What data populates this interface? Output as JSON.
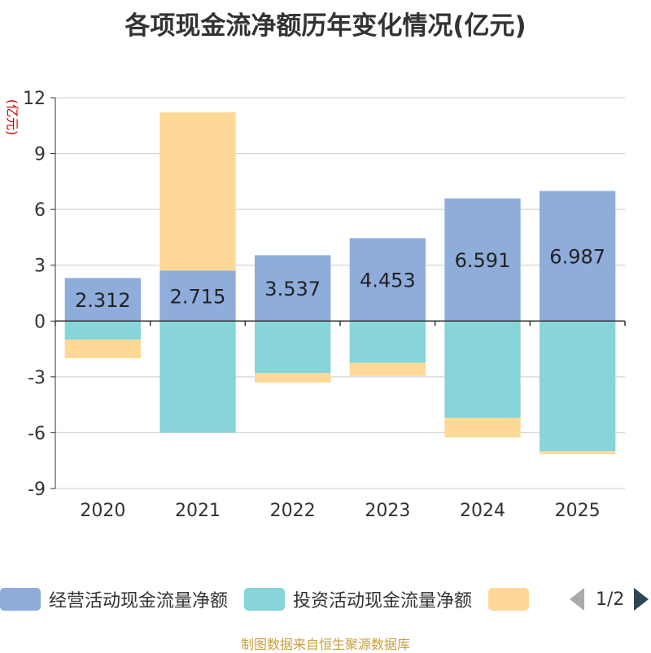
{
  "chart_data": {
    "type": "bar",
    "stacked": true,
    "title": "各项现金流净额历年变化情况(亿元)",
    "ylabel": "(亿元)",
    "ylim": [
      -9,
      12
    ],
    "yticks": [
      12,
      9,
      6,
      3,
      0,
      -3,
      -6,
      -9
    ],
    "categories": [
      "2020",
      "2021",
      "2022",
      "2023",
      "2024",
      "2025"
    ],
    "series": [
      {
        "name": "经营活动现金流量净额",
        "color": "#8eaddb",
        "values": [
          2.312,
          2.715,
          3.537,
          4.453,
          6.591,
          6.987
        ],
        "labels": [
          "2.312",
          "2.715",
          "3.537",
          "4.453",
          "6.591",
          "6.987"
        ]
      },
      {
        "name": "投资活动现金流量净额",
        "color": "#87d5d8",
        "values": [
          -1.0,
          -6.0,
          -2.8,
          -2.25,
          -5.2,
          -7.0
        ]
      },
      {
        "name": "",
        "color": "#fed897",
        "values": [
          -1.0,
          8.5,
          -0.5,
          -0.7,
          -1.05,
          -0.15
        ]
      }
    ]
  },
  "legend": {
    "pager": "1/2"
  },
  "source": "制图数据来自恒生聚源数据库"
}
